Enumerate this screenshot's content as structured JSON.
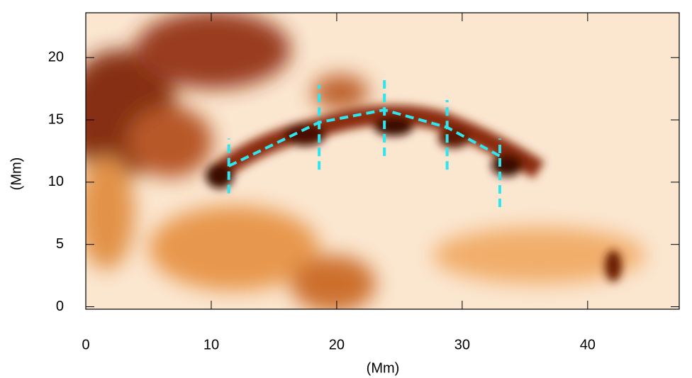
{
  "chart_data": {
    "type": "image-overlay",
    "xlabel": "(Mm)",
    "ylabel": "(Mm)",
    "xlim": [
      0,
      47.3
    ],
    "ylim": [
      -0.2,
      23.6
    ],
    "xticks": [
      0,
      10,
      20,
      30,
      40
    ],
    "yticks": [
      0,
      5,
      10,
      15,
      20
    ],
    "series": [
      {
        "color": "#2ee6f0",
        "x": [
          11.4,
          18.6,
          23.8,
          28.8,
          33.0
        ],
        "values": [
          11.3,
          14.8,
          15.8,
          14.4,
          12.1
        ]
      },
      {
        "color": "#2ee6f0",
        "x": [
          11.4,
          11.4
        ],
        "values": [
          9.1,
          13.5
        ]
      },
      {
        "color": "#2ee6f0",
        "x": [
          18.6,
          18.6
        ],
        "values": [
          11.0,
          17.8
        ]
      },
      {
        "color": "#2ee6f0",
        "x": [
          23.8,
          23.8
        ],
        "values": [
          12.1,
          18.6
        ]
      },
      {
        "color": "#2ee6f0",
        "x": [
          28.8,
          28.8
        ],
        "values": [
          11.0,
          16.6
        ]
      },
      {
        "color": "#2ee6f0",
        "x": [
          33.0,
          33.0
        ],
        "values": [
          8.0,
          13.5
        ]
      }
    ]
  }
}
